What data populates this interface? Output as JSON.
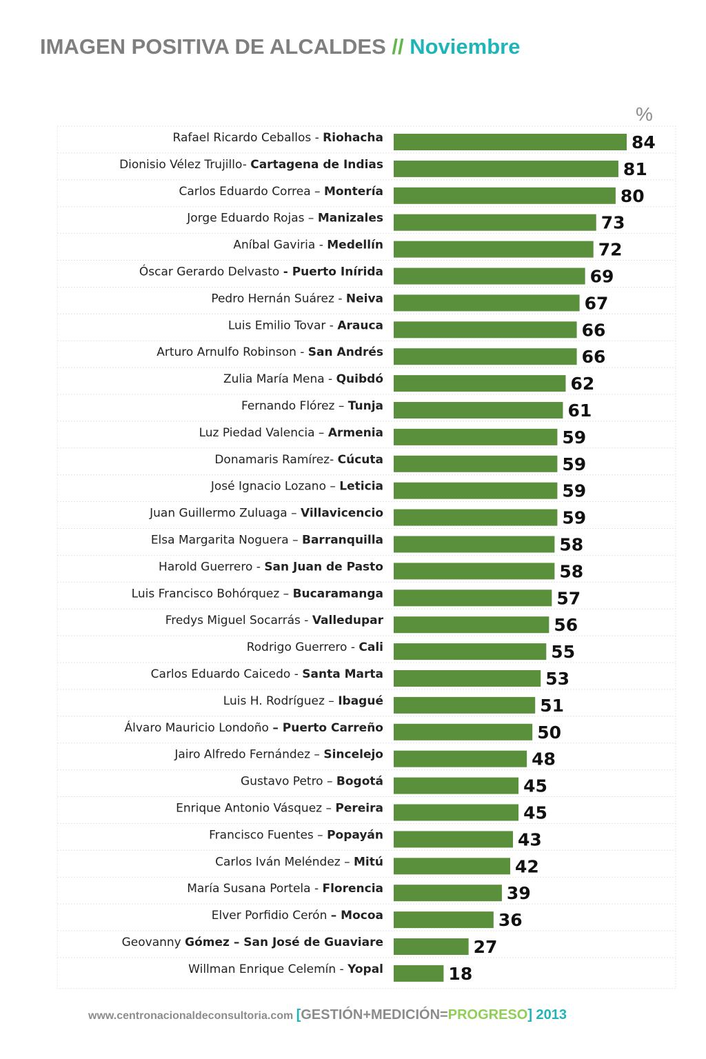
{
  "header": {
    "title_main": "IMAGEN POSITIVA DE ALCALDES",
    "title_sep": " // ",
    "title_month": "Noviembre"
  },
  "colors": {
    "bar": "#5a8f3c",
    "title_gray": "#7f7f7f",
    "accent_green": "#62b64a",
    "accent_teal": "#1fb4b7"
  },
  "chart_data": {
    "type": "bar",
    "orientation": "horizontal",
    "unit_label": "%",
    "xlim": [
      0,
      84
    ],
    "grid": false,
    "categories": [
      {
        "name": "Rafael Ricardo Ceballos - ",
        "city": "Riohacha"
      },
      {
        "name": "Dionisio Vélez Trujillo- ",
        "city": "Cartagena de Indias"
      },
      {
        "name": "Carlos Eduardo Correa – ",
        "city": "Montería"
      },
      {
        "name": "Jorge Eduardo Rojas – ",
        "city": "Manizales"
      },
      {
        "name": "Aníbal Gaviria - ",
        "city": "Medellín"
      },
      {
        "name": "Óscar Gerardo Delvasto ",
        "city": "- Puerto Inírida"
      },
      {
        "name": "Pedro Hernán Suárez - ",
        "city": "Neiva"
      },
      {
        "name": "Luis Emilio Tovar - ",
        "city": "Arauca"
      },
      {
        "name": "Arturo Arnulfo Robinson - ",
        "city": "San Andrés"
      },
      {
        "name": "Zulia María Mena - ",
        "city": "Quibdó"
      },
      {
        "name": "Fernando Flórez – ",
        "city": "Tunja"
      },
      {
        "name": "Luz Piedad Valencia – ",
        "city": "Armenia"
      },
      {
        "name": "Donamaris Ramírez- ",
        "city": "Cúcuta"
      },
      {
        "name": "José Ignacio Lozano – ",
        "city": "Leticia"
      },
      {
        "name": "Juan Guillermo Zuluaga – ",
        "city": "Villavicencio"
      },
      {
        "name": "Elsa Margarita Noguera – ",
        "city": "Barranquilla"
      },
      {
        "name": "Harold Guerrero - ",
        "city": "San Juan de Pasto"
      },
      {
        "name": "Luis Francisco Bohórquez – ",
        "city": "Bucaramanga"
      },
      {
        "name": "Fredys Miguel Socarrás - ",
        "city": "Valledupar"
      },
      {
        "name": "Rodrigo Guerrero - ",
        "city": "Cali"
      },
      {
        "name": "Carlos Eduardo Caicedo - ",
        "city": "Santa Marta"
      },
      {
        "name": "Luis H. Rodríguez – ",
        "city": "Ibagué"
      },
      {
        "name": "Álvaro Mauricio Londoño ",
        "city": "– Puerto Carreño"
      },
      {
        "name": "Jairo Alfredo Fernández – ",
        "city": "Sincelejo"
      },
      {
        "name": "Gustavo Petro – ",
        "city": "Bogotá"
      },
      {
        "name": "Enrique Antonio Vásquez – ",
        "city": "Pereira"
      },
      {
        "name": "Francisco Fuentes – ",
        "city": "Popayán"
      },
      {
        "name": "Carlos Iván Meléndez – ",
        "city": "Mitú"
      },
      {
        "name": "María Susana Portela - ",
        "city": "Florencia"
      },
      {
        "name": "Elver Porfidio Cerón ",
        "city": "– Mocoa"
      },
      {
        "name": "Geovanny ",
        "city": "Gómez – San José de Guaviare"
      },
      {
        "name": "Willman Enrique Celemín - ",
        "city": "Yopal"
      }
    ],
    "values": [
      84,
      81,
      80,
      73,
      72,
      69,
      67,
      66,
      66,
      62,
      61,
      59,
      59,
      59,
      59,
      58,
      58,
      57,
      56,
      55,
      53,
      51,
      50,
      48,
      45,
      45,
      43,
      42,
      39,
      36,
      27,
      18
    ]
  },
  "footer": {
    "url": "www.centronacionaldeconsultoria.com ",
    "bracket_open": "[",
    "gestion": "GESTIÓN+MEDICIÓN=",
    "progreso": "PROGRESO",
    "bracket_close": "]",
    "year": " 2013"
  }
}
